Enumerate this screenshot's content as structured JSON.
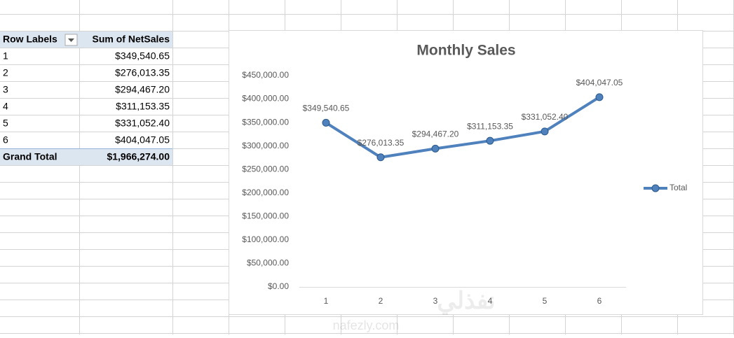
{
  "table": {
    "header": [
      "Row Labels",
      "Sum of NetSales"
    ],
    "rows": [
      [
        "1",
        "$349,540.65"
      ],
      [
        "2",
        "$276,013.35"
      ],
      [
        "3",
        "$294,467.20"
      ],
      [
        "4",
        "$311,153.35"
      ],
      [
        "5",
        "$331,052.40"
      ],
      [
        "6",
        "$404,047.05"
      ]
    ],
    "total": [
      "Grand Total",
      "$1,966,274.00"
    ]
  },
  "chart_data": {
    "type": "line",
    "title": "Monthly Sales",
    "categories": [
      "1",
      "2",
      "3",
      "4",
      "5",
      "6"
    ],
    "series": [
      {
        "name": "Total",
        "color": "#4f81bd",
        "values": [
          349540.65,
          276013.35,
          294467.2,
          311153.35,
          331052.4,
          404047.05
        ],
        "value_labels": [
          "$349,540.65",
          "$276,013.35",
          "$294,467.20",
          "$311,153.35",
          "$331,052.40",
          "$404,047.05"
        ]
      }
    ],
    "ylim": [
      0,
      450000
    ],
    "yticks": [
      {
        "value": 0,
        "label": "$0.00"
      },
      {
        "value": 50000,
        "label": "$50,000.00"
      },
      {
        "value": 100000,
        "label": "$100,000.00"
      },
      {
        "value": 150000,
        "label": "$150,000.00"
      },
      {
        "value": 200000,
        "label": "$200,000.00"
      },
      {
        "value": 250000,
        "label": "$250,000.00"
      },
      {
        "value": 300000,
        "label": "$300,000.00"
      },
      {
        "value": 350000,
        "label": "$350,000.00"
      },
      {
        "value": 400000,
        "label": "$400,000.00"
      },
      {
        "value": 450000,
        "label": "$450,000.00"
      }
    ],
    "grid": false,
    "legend": "right"
  },
  "watermark": {
    "arabic": "نفذلي",
    "latin": "nafezly.com"
  }
}
